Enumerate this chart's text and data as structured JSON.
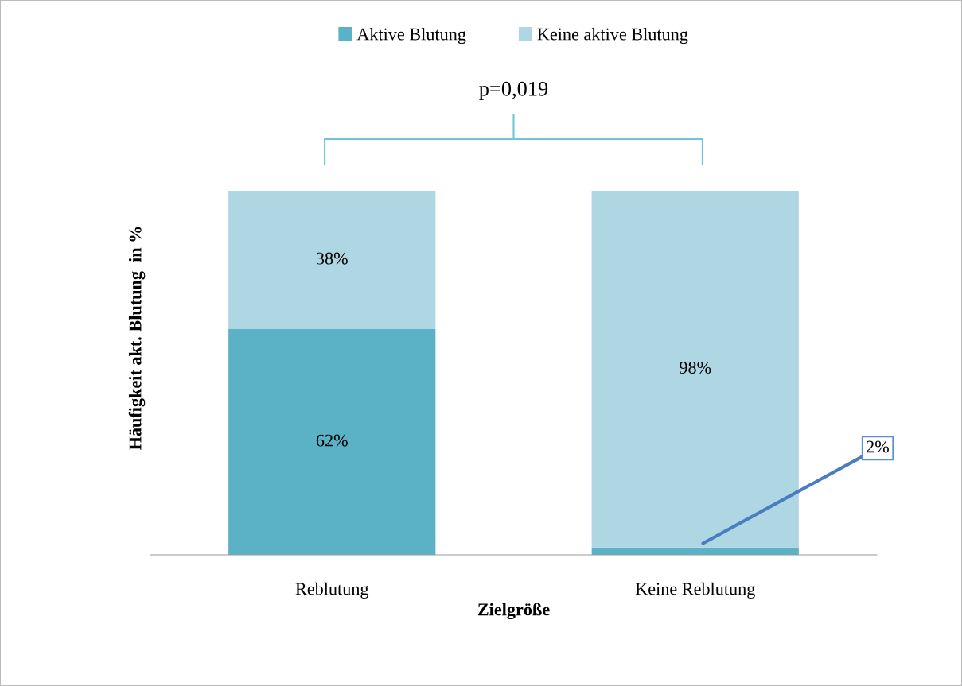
{
  "chart_data": {
    "type": "bar",
    "stacked": true,
    "xlabel": "Zielgröße",
    "ylabel": "Häufigkeit akt. Blutung  in %",
    "categories": [
      "Reblutung",
      "Keine Reblutung"
    ],
    "series": [
      {
        "name": "Aktive Blutung",
        "color": "#5bb1c6",
        "values": [
          62,
          2
        ],
        "value_labels": [
          "62%",
          "2%"
        ]
      },
      {
        "name": "Keine aktive Blutung",
        "color": "#afd6e3",
        "values": [
          38,
          98
        ],
        "value_labels": [
          "38%",
          "98%"
        ]
      }
    ],
    "annotations": [
      "p=0,019"
    ],
    "legend": "top",
    "grid": false
  }
}
